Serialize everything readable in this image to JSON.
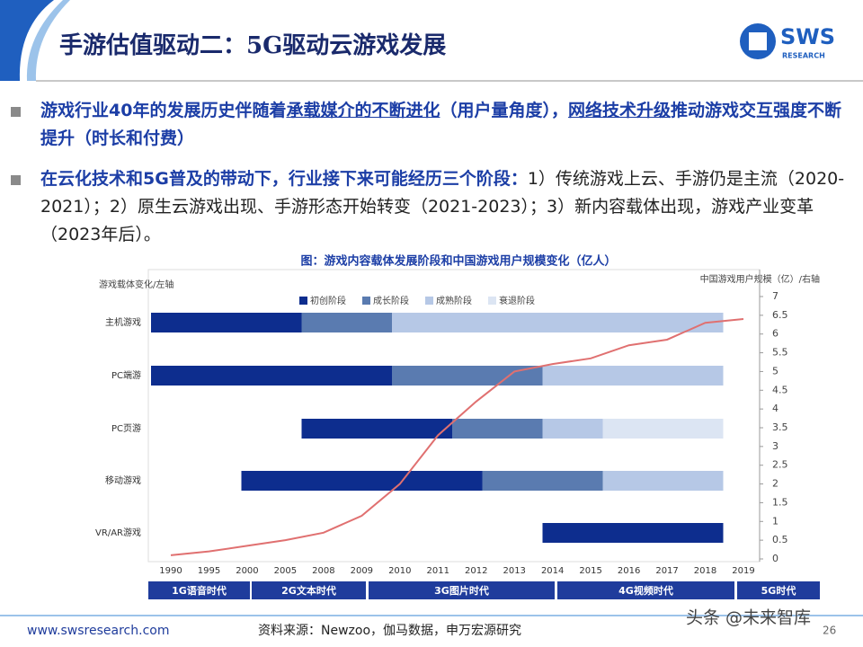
{
  "header": {
    "title": "手游估值驱动二：5G驱动云游戏发展",
    "logo": "SWS",
    "logo_sub": "RESEARCH"
  },
  "bullets": [
    [
      "游戏行业40年的发展历史伴随着",
      "承载媒介的不断进化",
      "（用户量角度），",
      "网络技术升级",
      "推动游戏交互强度不断提升（时长和付费）"
    ],
    [
      "在云化技术和5G普及的带动下，行业接下来可能经历三个阶段：",
      "1）传统游戏上云、手游仍是主流（2020-2021）；2）原生云游戏出现、手游形态开始转变（2021-2023）；3）新内容载体出现，游戏产业变革（2023年后）。"
    ]
  ],
  "chart_data": {
    "type": "gantt_line",
    "title": "图：游戏内容载体发展阶段和中国游戏用户规模变化（亿人）",
    "left_axis_label": "游戏载体变化/左轴",
    "right_axis_label": "中国游戏用户规模（亿）/右轴",
    "rows": [
      "主机游戏",
      "PC端游",
      "PC页游",
      "移动游戏",
      "VR/AR游戏"
    ],
    "xlim": [
      0,
      19
    ],
    "series": [
      {
        "name": "初创阶段",
        "color": "#0d2d8e",
        "values": [
          [
            0,
            5
          ],
          [
            0,
            8
          ],
          [
            5,
            10
          ],
          [
            3,
            11
          ],
          [
            13,
            19
          ]
        ]
      },
      {
        "name": "成长阶段",
        "color": "#5a7bb0",
        "values": [
          [
            5,
            8
          ],
          [
            8,
            13
          ],
          [
            10,
            13
          ],
          [
            11,
            15
          ],
          null
        ]
      },
      {
        "name": "成熟阶段",
        "color": "#b6c8e6",
        "values": [
          [
            8,
            19
          ],
          [
            13,
            19
          ],
          [
            13,
            15
          ],
          [
            15,
            19
          ],
          null
        ]
      },
      {
        "name": "衰退阶段",
        "color": "#dce5f3",
        "values": [
          null,
          null,
          [
            15,
            19
          ],
          null,
          null
        ]
      }
    ],
    "categories": [
      "1990",
      "1995",
      "2000",
      "2005",
      "2008",
      "2009",
      "2010",
      "2011",
      "2012",
      "2013",
      "2014",
      "2015",
      "2016",
      "2017",
      "2018",
      "2019"
    ],
    "line": {
      "color": "#e07070",
      "values": [
        0.1,
        0.2,
        0.35,
        0.5,
        0.7,
        1.15,
        2.0,
        3.3,
        4.2,
        5.0,
        5.2,
        5.35,
        5.7,
        5.85,
        6.3,
        6.4
      ]
    },
    "y2lim": [
      0,
      7
    ],
    "y2ticks": [
      0,
      0.5,
      1,
      1.5,
      2,
      2.5,
      3,
      3.5,
      4,
      4.5,
      5,
      5.5,
      6,
      6.5,
      7
    ],
    "eras": [
      "1G语音时代",
      "2G文本时代",
      "3G图片时代",
      "4G视频时代",
      "5G时代"
    ],
    "era_color": "#1f3c9c"
  },
  "footer": {
    "url": "www.swsresearch.com",
    "source": "资料来源：Newzoo，伽马数据，申万宏源研究",
    "page": "26",
    "watermark": "头条 @未来智库"
  }
}
